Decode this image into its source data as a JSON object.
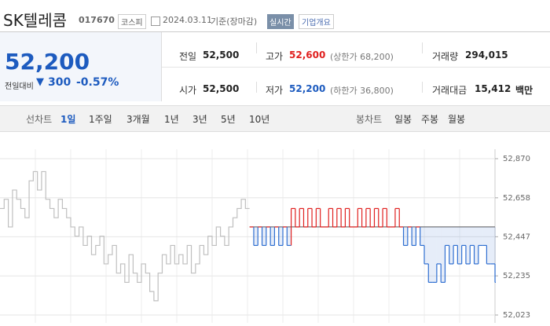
{
  "header": {
    "name": "SK텔레콤",
    "code": "017670",
    "market": "코스피",
    "date": "2024.03.11",
    "status": "기준(장마감)",
    "realtime": "실시간",
    "company": "기업개요"
  },
  "price": {
    "current": "52,200",
    "change_label": "전일대비",
    "change_arrow": "▼",
    "change": "300",
    "change_rate": "-0.57%"
  },
  "stats": {
    "rows": [
      [
        {
          "label": "전일",
          "value": "52,500"
        },
        {
          "label": "고가",
          "value": "52,600",
          "note": "(상한가 68,200)"
        },
        {
          "label": "거래량",
          "value": "294,015"
        }
      ],
      [
        {
          "label": "시가",
          "value": "52,500"
        },
        {
          "label": "저가",
          "value": "52,200",
          "note": "(하한가 36,800)"
        },
        {
          "label": "거래대금",
          "value": "15,412",
          "unit": "백만"
        }
      ]
    ]
  },
  "tabs": {
    "line_label": "선차트",
    "periods": [
      "1일",
      "1주일",
      "3개월",
      "1년",
      "3년",
      "5년",
      "10년"
    ],
    "candle_label": "봉차트",
    "candles": [
      "일봉",
      "주봉",
      "월봉"
    ]
  },
  "chart_data": {
    "type": "line",
    "baseline": 52500,
    "up_color": "#e0201f",
    "down_color": "#2f6fd1",
    "prev_color": "#bfbfbf",
    "grid": true,
    "ylim": [
      52023,
      52870
    ],
    "yticks": [
      {
        "value": 52023,
        "label": "52,023"
      },
      {
        "value": 52235,
        "label": "52,235"
      },
      {
        "value": 52447,
        "label": "52,447"
      },
      {
        "value": 52658,
        "label": "52,658"
      },
      {
        "value": 52870,
        "label": "52,870"
      }
    ],
    "series": [
      {
        "color": "#bfbfbf",
        "values": [
          52600,
          52650,
          52500,
          52700,
          52650,
          52600,
          52550,
          52750,
          52800,
          52700,
          52800,
          52650,
          52600,
          52550,
          52650,
          52600,
          52550,
          52500,
          52450,
          52500,
          52400,
          52450,
          52350,
          52400,
          52450,
          52300,
          52350,
          52400,
          52250,
          52300,
          52200,
          52350,
          52250,
          52200,
          52300,
          52250,
          52150,
          52100,
          52250,
          52350,
          52300,
          52400,
          52300,
          52350,
          52300,
          52400,
          52250,
          52300,
          52400,
          52350,
          52450,
          52400,
          52500,
          52450,
          52400,
          52500,
          52550,
          52600,
          52650,
          52600,
          null,
          null,
          null,
          null,
          null,
          null,
          null,
          null,
          null,
          null,
          null,
          null,
          null,
          null,
          null,
          null,
          null,
          null,
          null,
          null,
          null,
          null,
          null,
          null,
          null,
          null,
          null,
          null,
          null,
          null,
          null,
          null,
          null,
          null,
          null,
          null,
          null,
          null,
          null,
          null,
          null,
          null,
          null,
          null,
          null,
          null,
          null,
          null,
          null,
          null,
          null,
          null,
          null,
          null,
          null,
          null,
          null,
          null,
          null,
          null
        ]
      },
      {
        "color": "#2f6fd1",
        "values": [
          null,
          null,
          null,
          null,
          null,
          null,
          null,
          null,
          null,
          null,
          null,
          null,
          null,
          null,
          null,
          null,
          null,
          null,
          null,
          null,
          null,
          null,
          null,
          null,
          null,
          null,
          null,
          null,
          null,
          null,
          null,
          null,
          null,
          null,
          null,
          null,
          null,
          null,
          null,
          null,
          null,
          null,
          null,
          null,
          null,
          null,
          null,
          null,
          null,
          null,
          null,
          null,
          null,
          null,
          null,
          null,
          null,
          null,
          null,
          null,
          52500,
          52400,
          52500,
          52400,
          52500,
          52400,
          52500,
          52400,
          52500,
          52400,
          52600,
          52500,
          52600,
          52500,
          52600,
          52500,
          52600,
          52500,
          52500,
          52600,
          52500,
          52600,
          52500,
          52600,
          52500,
          52500,
          52600,
          52500,
          52600,
          52500,
          52600,
          52500,
          52600,
          52500,
          52500,
          52600,
          52500,
          52400,
          52500,
          52400,
          52500,
          52400,
          52300,
          52200,
          52200,
          52300,
          52200,
          52400,
          52300,
          52400,
          52300,
          52400,
          52300,
          52400,
          52300,
          52400,
          52400,
          52300,
          52300,
          52200
        ]
      }
    ]
  }
}
